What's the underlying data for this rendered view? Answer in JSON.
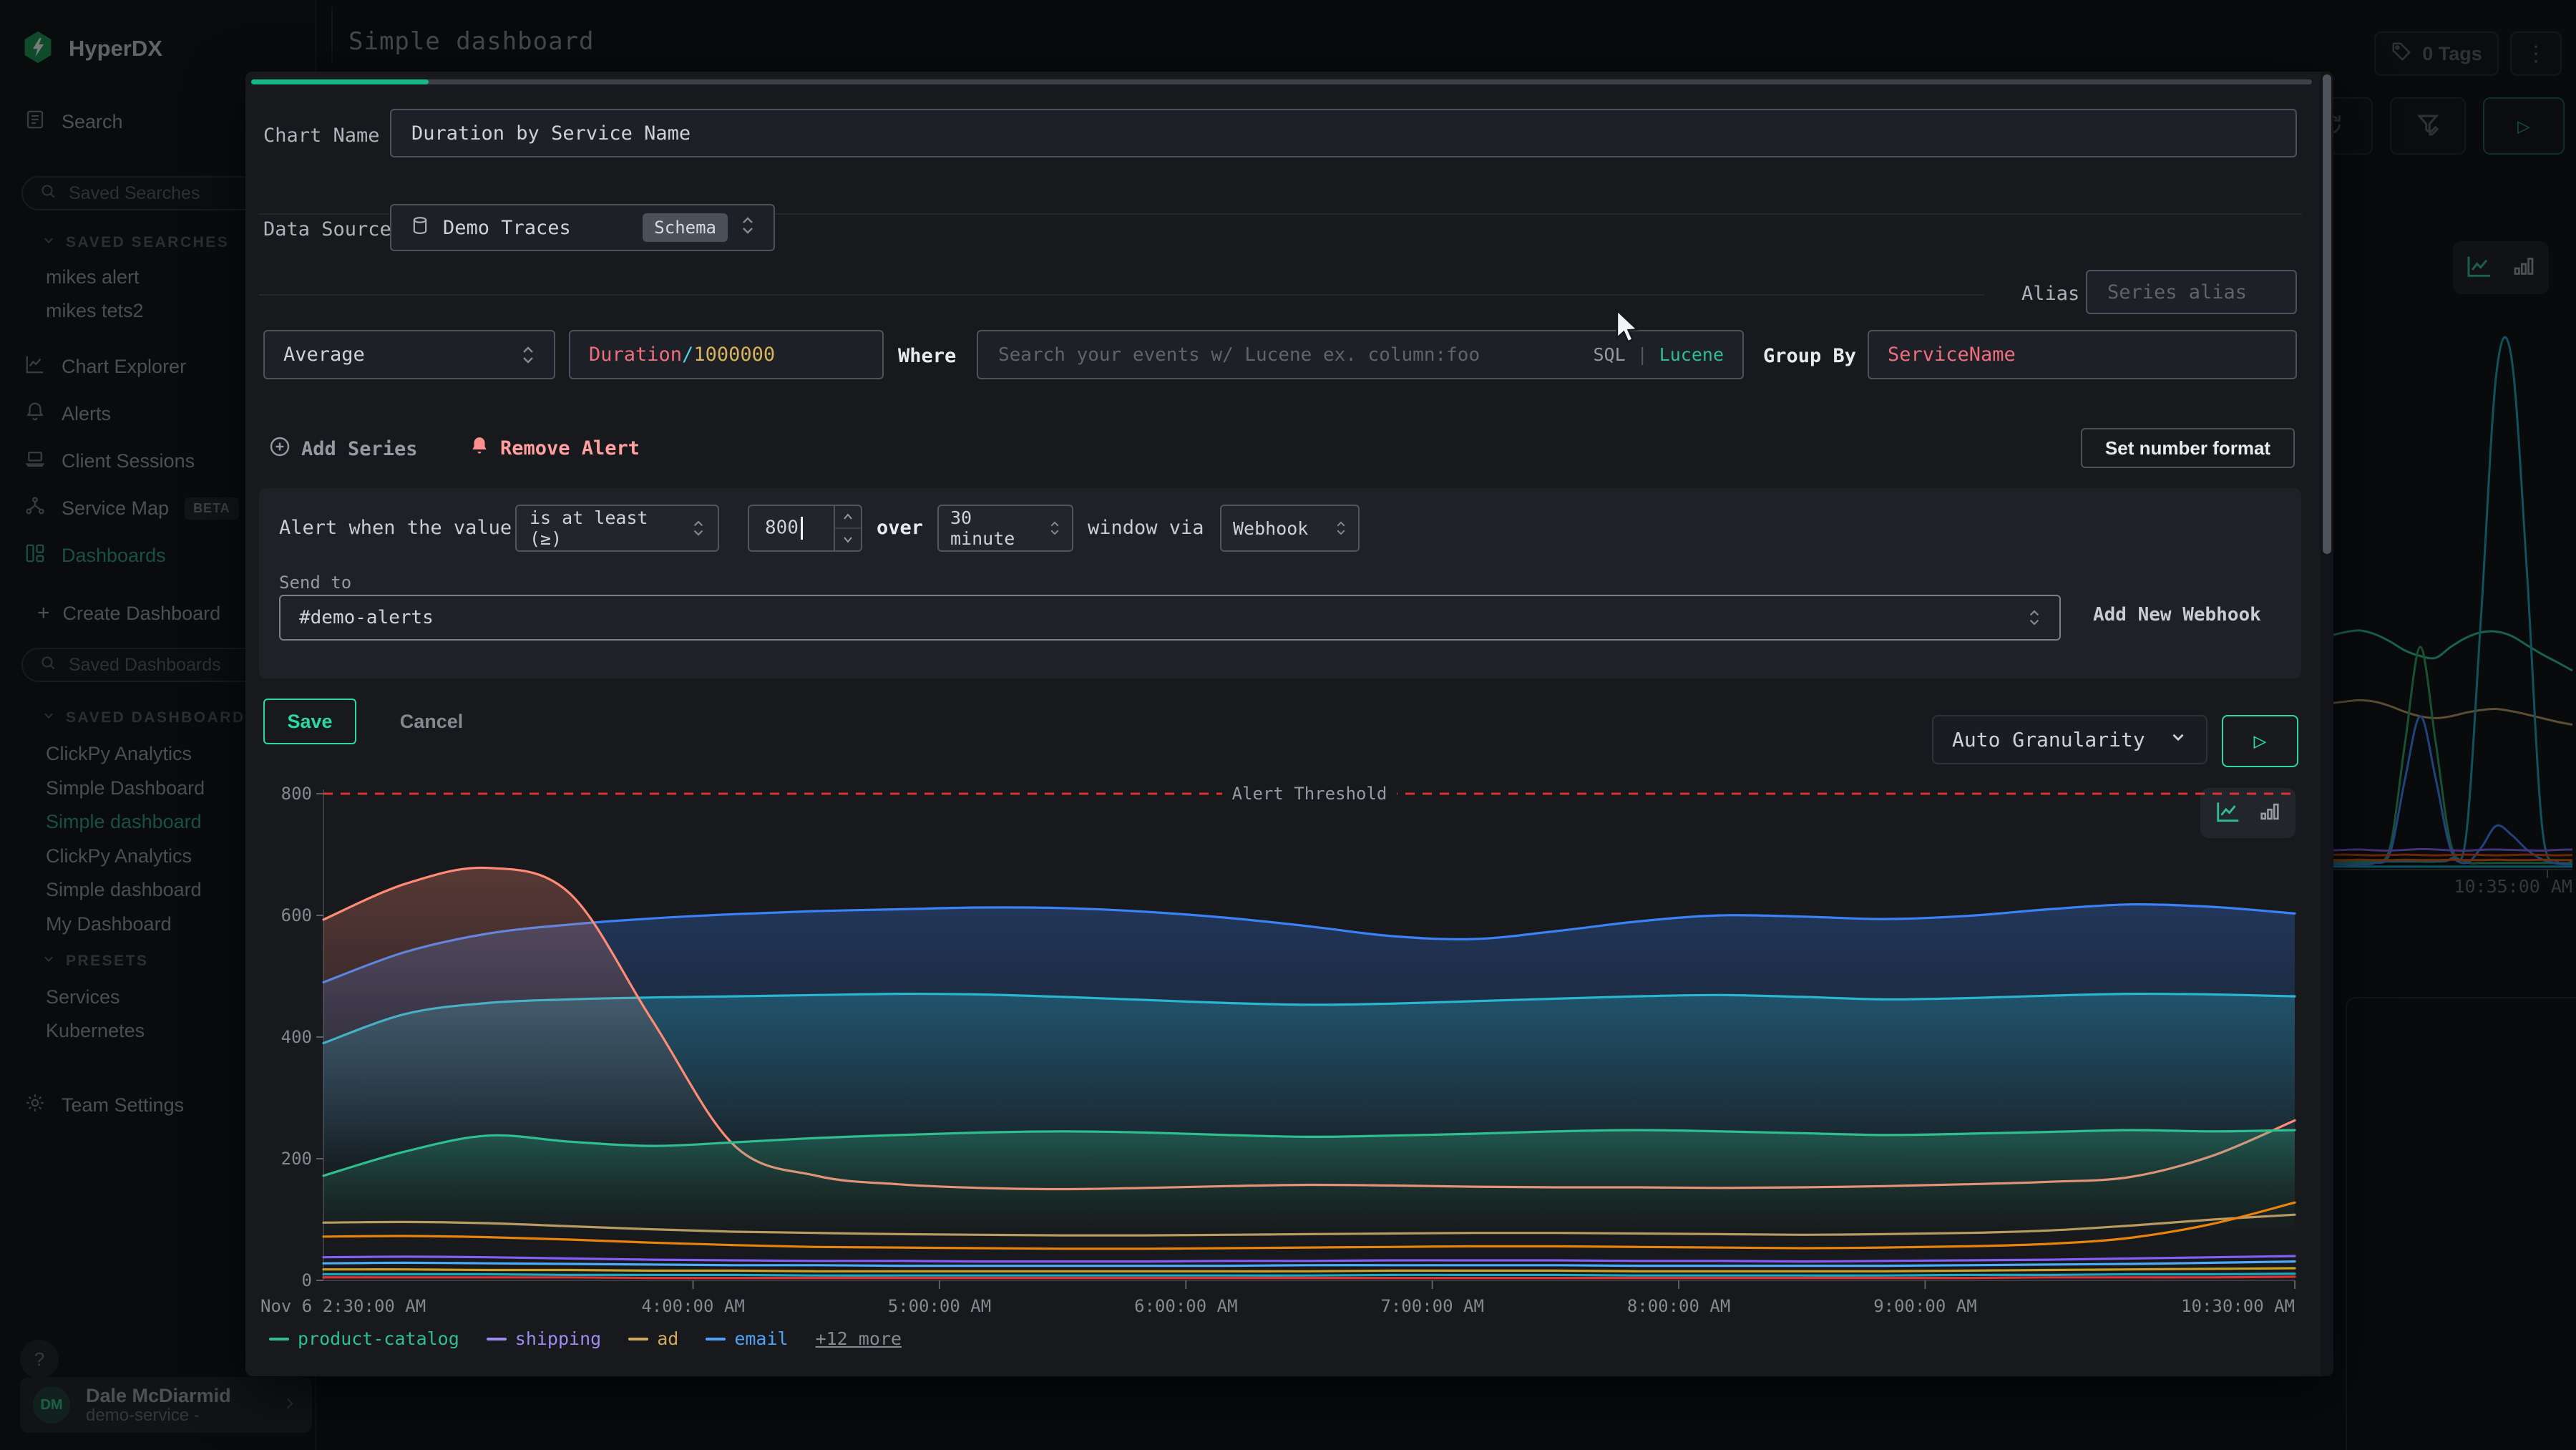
{
  "header": {
    "title": "Simple dashboard",
    "tags_label": "0 Tags"
  },
  "sidebar": {
    "logo_text": "HyperDX",
    "search_label": "Search",
    "saved_searches_placeholder": "Saved Searches",
    "saved_searches_section": "SAVED SEARCHES",
    "saved_searches": [
      "mikes alert",
      "mikes tets2"
    ],
    "nav": [
      {
        "label": "Chart Explorer"
      },
      {
        "label": "Alerts"
      },
      {
        "label": "Client Sessions"
      },
      {
        "label": "Service Map",
        "badge": "BETA"
      },
      {
        "label": "Dashboards",
        "active": true
      }
    ],
    "create_dashboard_label": "Create Dashboard",
    "saved_dashboards_placeholder": "Saved Dashboards",
    "saved_dashboards_section": "SAVED DASHBOARDS",
    "saved_dashboards": [
      {
        "label": "ClickPy Analytics"
      },
      {
        "label": "Simple Dashboard"
      },
      {
        "label": "Simple dashboard",
        "active": true
      },
      {
        "label": "ClickPy Analytics"
      },
      {
        "label": "Simple dashboard"
      },
      {
        "label": "My Dashboard"
      }
    ],
    "presets_section": "PRESETS",
    "presets": [
      "Services",
      "Kubernetes"
    ],
    "team_settings_label": "Team Settings",
    "help_label": "?",
    "user": {
      "initials": "DM",
      "name": "Dale McDiarmid",
      "subtitle": "demo-service -"
    }
  },
  "modal": {
    "chart_name_label": "Chart Name",
    "chart_name_value": "Duration by Service Name",
    "data_source_label": "Data Source",
    "data_source_value": "Demo Traces",
    "data_source_badge": "Schema",
    "alias_label": "Alias",
    "alias_placeholder": "Series alias",
    "aggregation_value": "Average",
    "metric": {
      "field": "Duration",
      "operator": "/",
      "value": "1000000"
    },
    "where_label": "Where",
    "search_placeholder": "Search your events w/ Lucene ex. column:foo",
    "sql_label": "SQL",
    "sql_divider": "|",
    "lucene_label": "Lucene",
    "group_by_label": "Group By",
    "group_by_value": "ServiceName",
    "add_series_label": "Add Series",
    "remove_alert_label": "Remove Alert",
    "set_number_format_label": "Set number format",
    "alert": {
      "prefix": "Alert when the value",
      "condition": "is at least (≥)",
      "threshold": "800",
      "over_label": "over",
      "window": "30 minute",
      "suffix": "window via",
      "channel": "Webhook",
      "send_to_label": "Send to",
      "send_to_value": "#demo-alerts",
      "add_webhook_label": "Add New Webhook"
    },
    "save_label": "Save",
    "cancel_label": "Cancel",
    "granularity_value": "Auto Granularity"
  },
  "background": {
    "time_label": "10:35:00 AM"
  },
  "colors": {
    "accent_green": "#2bd9a0",
    "brand_green": "#12b886",
    "active_nav_green": "#2f9e82",
    "alert_pink": "#ff9f9f",
    "threshold_red": "#e03131",
    "field_red": "#ef6e7e",
    "code_cyan": "#4fd0e0",
    "code_gold": "#d9b35c"
  },
  "icons": [
    "hyperdx-logo-icon",
    "panel-collapse-icon",
    "tag-icon",
    "kebab-icon",
    "refresh-icon",
    "filter-edit-icon",
    "play-icon",
    "search-icon",
    "document-icon",
    "chart-icon",
    "bell-icon",
    "laptop-icon",
    "service-map-icon",
    "dashboards-icon",
    "gear-icon",
    "plus-icon",
    "chevron-down-icon",
    "chevron-right-icon",
    "chevrons-updown-icon",
    "database-icon",
    "circle-plus-icon",
    "bell-filled-icon",
    "line-chart-icon",
    "bar-chart-icon",
    "question-icon",
    "cursor-arrow-icon"
  ],
  "chart_data": [
    {
      "type": "line",
      "title": "Duration by Service Name",
      "xlabel": "",
      "ylabel": "",
      "ylim": [
        0,
        800
      ],
      "y_ticks": [
        0,
        200,
        400,
        600,
        800
      ],
      "x_axis": {
        "range_hours": [
          2.5,
          10.5
        ],
        "start_label": "Nov 6 2:30:00 AM",
        "end_label": "10:30:00 AM",
        "tick_hours": [
          4,
          5,
          6,
          7,
          8,
          9
        ],
        "tick_labels": [
          "4:00:00 AM",
          "5:00:00 AM",
          "6:00:00 AM",
          "7:00:00 AM",
          "8:00:00 AM",
          "9:00:00 AM"
        ]
      },
      "threshold": {
        "label": "Alert Threshold",
        "value": 800,
        "color": "#e03131"
      },
      "legend": [
        {
          "name": "product-catalog",
          "color": "#2fbf8f"
        },
        {
          "name": "shipping",
          "color": "#9d8cf0"
        },
        {
          "name": "ad",
          "color": "#d2a85c"
        },
        {
          "name": "email",
          "color": "#4da3f5"
        },
        {
          "name": "+12 more",
          "color": null
        }
      ],
      "series": [
        {
          "name": "blue",
          "color": "#3b82f6",
          "fill": true,
          "values": [
            490,
            540,
            570,
            585,
            595,
            602,
            607,
            610,
            613,
            612,
            606,
            596,
            582,
            566,
            561,
            574,
            590,
            600,
            598,
            594,
            599,
            610,
            618,
            614,
            603
          ]
        },
        {
          "name": "cyan",
          "color": "#29b6cf",
          "fill": true,
          "values": [
            390,
            438,
            456,
            462,
            465,
            467,
            469,
            471,
            470,
            466,
            461,
            456,
            453,
            455,
            459,
            463,
            467,
            469,
            466,
            462,
            464,
            468,
            471,
            470,
            467
          ]
        },
        {
          "name": "salmon",
          "color": "#ff8b75",
          "fill": true,
          "values": [
            593,
            652,
            678,
            636,
            428,
            222,
            172,
            158,
            152,
            150,
            152,
            155,
            157,
            156,
            154,
            153,
            153,
            152,
            153,
            155,
            158,
            162,
            170,
            205,
            263
          ]
        },
        {
          "name": "product-catalog",
          "color": "#2fbf8f",
          "fill": true,
          "values": [
            172,
            212,
            238,
            228,
            221,
            227,
            234,
            239,
            243,
            245,
            243,
            239,
            236,
            238,
            241,
            245,
            247,
            245,
            242,
            239,
            241,
            244,
            247,
            245,
            247
          ]
        },
        {
          "name": "ad",
          "color": "#b89a62",
          "values": [
            95,
            96,
            94,
            89,
            84,
            80,
            78,
            76,
            75,
            74,
            74,
            75,
            76,
            77,
            78,
            78,
            77,
            76,
            75,
            76,
            78,
            82,
            90,
            100,
            108
          ]
        },
        {
          "name": "orange",
          "color": "#e8830c",
          "values": [
            72,
            73,
            71,
            67,
            62,
            58,
            55,
            54,
            53,
            52,
            52,
            53,
            54,
            55,
            56,
            56,
            55,
            54,
            53,
            54,
            56,
            60,
            70,
            93,
            128
          ]
        },
        {
          "name": "shipping",
          "color": "#845ef7",
          "values": [
            38,
            39,
            38,
            36,
            34,
            33,
            32,
            32,
            31,
            31,
            31,
            32,
            32,
            33,
            33,
            33,
            32,
            32,
            31,
            32,
            33,
            34,
            36,
            38,
            40
          ]
        },
        {
          "name": "email",
          "color": "#4dabf7",
          "values": [
            28,
            29,
            28,
            27,
            26,
            25,
            25,
            24,
            24,
            24,
            24,
            24,
            25,
            25,
            25,
            25,
            24,
            24,
            24,
            24,
            25,
            26,
            27,
            29,
            31
          ]
        },
        {
          "name": "yellow",
          "color": "#c9a227",
          "values": [
            18,
            18,
            17,
            17,
            16,
            16,
            15,
            15,
            15,
            15,
            15,
            15,
            15,
            16,
            16,
            16,
            15,
            15,
            15,
            15,
            16,
            17,
            18,
            19,
            20
          ]
        },
        {
          "name": "teal",
          "color": "#15aabf",
          "values": [
            10,
            10,
            10,
            9,
            9,
            9,
            8,
            8,
            8,
            8,
            8,
            8,
            8,
            9,
            9,
            9,
            8,
            8,
            8,
            8,
            9,
            9,
            10,
            10,
            11
          ]
        },
        {
          "name": "red",
          "color": "#e03131",
          "values": [
            5,
            5,
            5,
            5,
            4,
            4,
            4,
            4,
            4,
            4,
            4,
            4,
            4,
            4,
            4,
            4,
            4,
            4,
            4,
            4,
            4,
            5,
            5,
            5,
            6
          ]
        }
      ]
    },
    {
      "type": "line",
      "title": "",
      "ylim": [
        0,
        1500
      ],
      "x_tick_label": "10:35:00 AM",
      "series": [
        {
          "name": "green",
          "color": "#2fbf8f",
          "values": [
            640,
            650,
            655,
            645,
            625,
            600,
            585,
            580,
            610,
            635,
            650,
            652,
            640,
            615,
            590,
            568,
            545
          ]
        },
        {
          "name": "tan",
          "color": "#b89a62",
          "values": [
            455,
            460,
            464,
            460,
            448,
            432,
            420,
            415,
            420,
            430,
            437,
            440,
            434,
            425,
            415,
            405,
            397
          ]
        },
        {
          "name": "teal-spike",
          "color": "#1f9fb4",
          "values": [
            22,
            22,
            22,
            22,
            22,
            22,
            22,
            22,
            30,
            90,
            700,
            1360,
            1400,
            820,
            120,
            22,
            22
          ]
        },
        {
          "name": "green-spike",
          "color": "#2aa05a",
          "values": [
            18,
            18,
            18,
            24,
            60,
            350,
            610,
            350,
            70,
            22,
            18,
            18,
            18,
            18,
            18,
            18,
            18
          ]
        },
        {
          "name": "blue-spike",
          "color": "#3b82f6",
          "values": [
            14,
            14,
            14,
            18,
            45,
            250,
            420,
            250,
            55,
            18,
            60,
            120,
            95,
            55,
            28,
            16,
            14
          ]
        },
        {
          "name": "violet",
          "color": "#845ef7",
          "values": [
            52,
            54,
            55,
            53,
            52,
            54,
            56,
            55,
            53,
            52,
            54,
            55,
            54,
            53,
            52,
            54,
            55
          ]
        },
        {
          "name": "dark-orange",
          "color": "#d9480f",
          "values": [
            40,
            41,
            40,
            39,
            40,
            41,
            40,
            39,
            40,
            41,
            40,
            39,
            40,
            41,
            40,
            39,
            40
          ]
        },
        {
          "name": "orange",
          "color": "#e8590c",
          "values": [
            26,
            26,
            27,
            26,
            26,
            27,
            26,
            26,
            27,
            26,
            26,
            27,
            26,
            26,
            27,
            26,
            26
          ]
        },
        {
          "name": "cyan-flat",
          "color": "#15aabf",
          "values": [
            8,
            8,
            8,
            8,
            8,
            8,
            8,
            8,
            8,
            8,
            8,
            8,
            8,
            8,
            8,
            8,
            8
          ]
        }
      ]
    }
  ]
}
